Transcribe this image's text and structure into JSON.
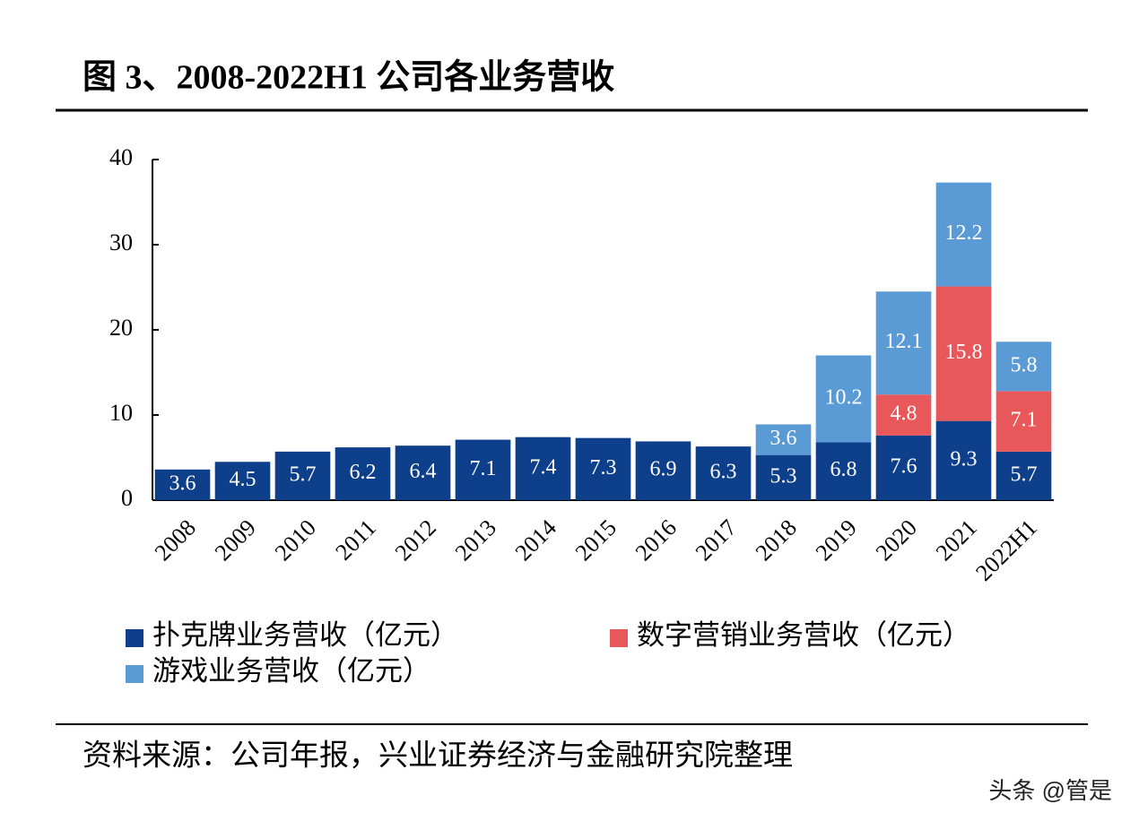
{
  "chart_data": {
    "type": "stacked-bar",
    "title": "图 3、2008-2022H1 公司各业务营收",
    "categories": [
      "2008",
      "2009",
      "2010",
      "2011",
      "2012",
      "2013",
      "2014",
      "2015",
      "2016",
      "2017",
      "2018",
      "2019",
      "2020",
      "2021",
      "2022H1"
    ],
    "series": [
      {
        "name": "扑克牌业务营收（亿元）",
        "color": "#0d3f8a",
        "values": [
          3.6,
          4.5,
          5.7,
          6.2,
          6.4,
          7.1,
          7.4,
          7.3,
          6.9,
          6.3,
          5.3,
          6.8,
          7.6,
          9.3,
          5.7
        ]
      },
      {
        "name": "数字营销业务营收（亿元）",
        "color": "#e8575a",
        "values": [
          null,
          null,
          null,
          null,
          null,
          null,
          null,
          null,
          null,
          null,
          null,
          null,
          4.8,
          15.8,
          7.1
        ]
      },
      {
        "name": "游戏业务营收（亿元）",
        "color": "#5b9bd5",
        "values": [
          null,
          null,
          null,
          null,
          null,
          null,
          null,
          null,
          null,
          null,
          3.6,
          10.2,
          12.1,
          12.2,
          5.8
        ]
      }
    ],
    "ylim": [
      0,
      40
    ],
    "yticks": [
      0,
      10,
      20,
      30,
      40
    ],
    "source": "资料来源：公司年报，兴业证券经济与金融研究院整理",
    "watermark": "头条 @管是"
  }
}
